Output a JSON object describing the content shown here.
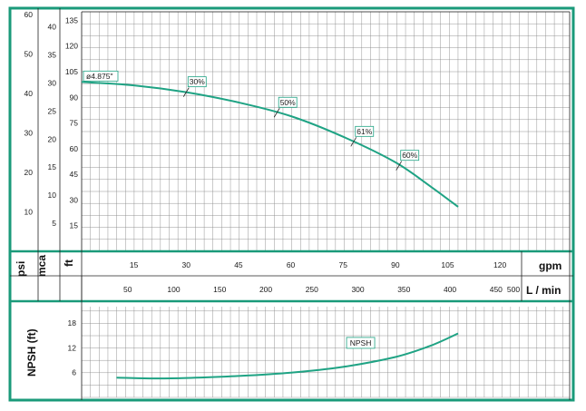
{
  "colors": {
    "frame": "#1a9a7a",
    "curve": "#1fa384",
    "grid": "#8a8a8a",
    "background": "#ffffff"
  },
  "units": {
    "psi": "psi",
    "mca": "mca",
    "ft": "ft",
    "gpm": "gpm",
    "lmin": "L / min",
    "npsh": "NPSH (ft)"
  },
  "chart_data": [
    {
      "type": "line",
      "title": "",
      "xlabel": "gpm",
      "xlabel_secondary": "L / min",
      "xlim": [
        0,
        140
      ],
      "x_ticks": [
        15,
        30,
        45,
        60,
        75,
        90,
        105,
        120
      ],
      "x_ticks_secondary_lmin": [
        50,
        100,
        150,
        200,
        250,
        300,
        350,
        400,
        450,
        500
      ],
      "ylabel": "ft",
      "ylim": [
        0,
        140
      ],
      "y_ticks_ft": [
        15,
        30,
        45,
        60,
        75,
        90,
        105,
        120,
        135
      ],
      "y_ticks_mca": [
        5,
        10,
        15,
        20,
        25,
        30,
        35,
        40
      ],
      "y_ticks_psi": [
        10,
        20,
        30,
        40,
        50,
        60
      ],
      "grid": true,
      "series": [
        {
          "name": "ø4.875\"",
          "x": [
            0,
            15,
            30,
            45,
            60,
            75,
            90,
            100,
            108
          ],
          "y": [
            99,
            97,
            93,
            87,
            79,
            67,
            52,
            38,
            26
          ]
        }
      ],
      "efficiency_labels": [
        {
          "text": "30%",
          "x": 30,
          "y": 93
        },
        {
          "text": "50%",
          "x": 56,
          "y": 81
        },
        {
          "text": "61%",
          "x": 78,
          "y": 64
        },
        {
          "text": "60%",
          "x": 91,
          "y": 50
        }
      ]
    },
    {
      "type": "line",
      "title": "",
      "ylabel": "NPSH (ft)",
      "xlim": [
        0,
        140
      ],
      "ylim": [
        0,
        22
      ],
      "y_ticks": [
        6,
        12,
        18
      ],
      "grid": true,
      "series": [
        {
          "name": "NPSH",
          "x": [
            10,
            20,
            30,
            45,
            60,
            75,
            90,
            100,
            108
          ],
          "y": [
            4.8,
            4.6,
            4.7,
            5.2,
            6.0,
            7.4,
            9.8,
            12.5,
            15.5
          ]
        }
      ]
    }
  ]
}
